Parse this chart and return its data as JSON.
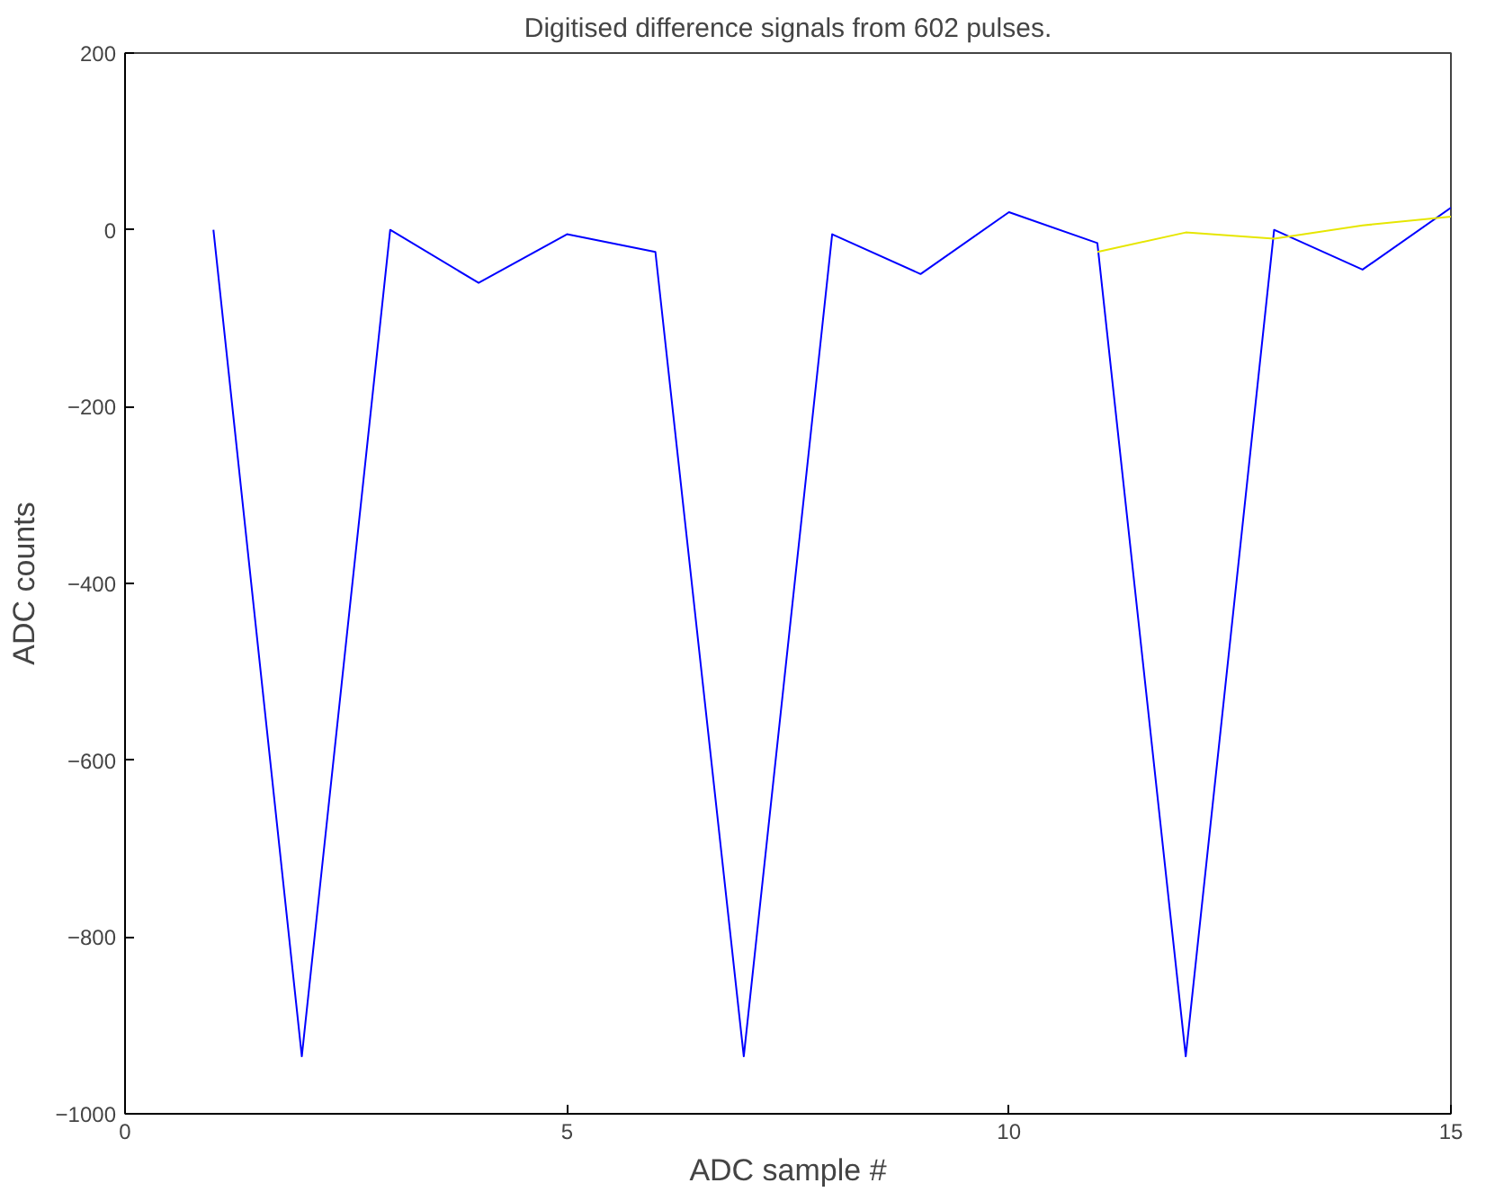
{
  "chart_data": {
    "type": "line",
    "title": "Digitised difference signals from 602 pulses.",
    "xlabel": "ADC sample #",
    "ylabel": "ADC counts",
    "x": [
      1,
      2,
      3,
      4,
      5,
      6,
      7,
      8,
      9,
      10,
      11,
      12,
      13,
      14,
      15
    ],
    "xlim": [
      0,
      15
    ],
    "ylim": [
      -1000,
      200
    ],
    "xticks": [
      0,
      5,
      10,
      15
    ],
    "yticks": [
      -1000,
      -800,
      -600,
      -400,
      -200,
      0,
      200
    ],
    "grid": false,
    "marker": "none",
    "line_style": "solid",
    "series": [
      {
        "color": "#0000ff",
        "values": [
          0,
          -935,
          0,
          -60,
          -5,
          -25,
          -935,
          -5,
          -50,
          20,
          -15,
          -935,
          0,
          -45,
          25
        ]
      },
      {
        "color": "#e6e600",
        "x": [
          11,
          12,
          13,
          14,
          15
        ],
        "values": [
          -25,
          -3,
          -10,
          5,
          15
        ]
      }
    ]
  }
}
